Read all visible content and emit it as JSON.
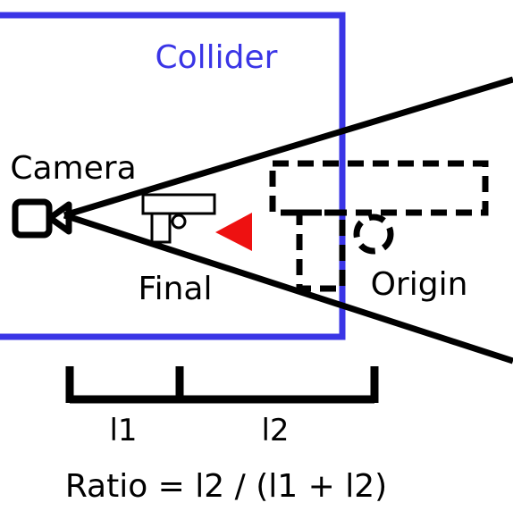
{
  "labels": {
    "collider": "Collider",
    "camera": "Camera",
    "final": "Final",
    "origin": "Origin",
    "l1": "l1",
    "l2": "l2",
    "formula": "Ratio = l2 / (l1 + l2)"
  },
  "colors": {
    "collider": "#3a35e6",
    "arrow": "#ee1111",
    "ink": "#000000"
  },
  "icons": [
    "camera-icon",
    "gun-icon",
    "arrow-left-icon",
    "gun-outline-icon"
  ]
}
